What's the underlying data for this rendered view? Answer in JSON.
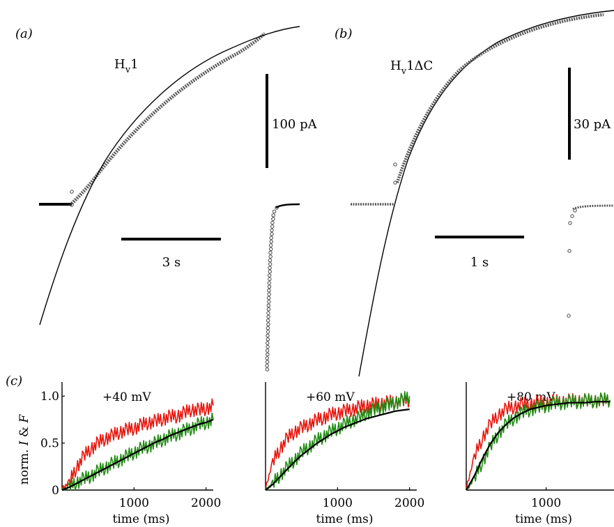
{
  "panels": {
    "a": {
      "letter": "(a)",
      "construct_main": "H",
      "construct_sub": "v",
      "construct_suffix": "1",
      "scalebar_current": "100 pA",
      "scalebar_time": "3 s"
    },
    "b": {
      "letter": "(b)",
      "construct_main": "H",
      "construct_sub": "v",
      "construct_suffix": "1ΔC",
      "scalebar_current": "30 pA",
      "scalebar_time": "1 s"
    },
    "c": {
      "letter": "(c)"
    }
  },
  "colors": {
    "current": "#e8140c",
    "fluorescence": "#1f8a12",
    "fit": "#000000",
    "trace": "#000000"
  },
  "chart_data": [
    {
      "type": "line",
      "panel": "c",
      "title": "+40 mV",
      "xlabel": "time (ms)",
      "ylabel_text": "norm. I & F",
      "xlim": [
        0,
        2100
      ],
      "ylim": [
        0,
        1.15
      ],
      "xticks": [
        1000,
        2000
      ],
      "yticks": [
        0,
        0.5,
        1.0
      ],
      "ytick_labels": [
        "0",
        "0.5",
        "1.0"
      ],
      "series": [
        {
          "color": "red",
          "x": [
            0,
            100,
            200,
            300,
            400,
            500,
            600,
            700,
            800,
            900,
            1000,
            1100,
            1200,
            1300,
            1400,
            1500,
            1600,
            1700,
            1800,
            1900,
            2000,
            2100
          ],
          "y": [
            0.02,
            0.08,
            0.24,
            0.36,
            0.44,
            0.5,
            0.55,
            0.58,
            0.62,
            0.64,
            0.66,
            0.69,
            0.72,
            0.73,
            0.76,
            0.78,
            0.79,
            0.82,
            0.86,
            0.85,
            0.87,
            0.9
          ]
        },
        {
          "color": "green",
          "x": [
            0,
            100,
            200,
            300,
            400,
            500,
            600,
            700,
            800,
            900,
            1000,
            1100,
            1200,
            1300,
            1400,
            1500,
            1600,
            1700,
            1800,
            1900,
            2000,
            2100
          ],
          "y": [
            0.0,
            0.04,
            0.08,
            0.12,
            0.15,
            0.2,
            0.24,
            0.28,
            0.32,
            0.36,
            0.4,
            0.44,
            0.47,
            0.5,
            0.54,
            0.57,
            0.6,
            0.63,
            0.66,
            0.7,
            0.72,
            0.75
          ]
        },
        {
          "color": "fit",
          "x": [
            0,
            100,
            200,
            300,
            400,
            500,
            600,
            700,
            800,
            900,
            1000,
            1100,
            1200,
            1300,
            1400,
            1500,
            1600,
            1700,
            1800,
            1900,
            2000,
            2100
          ],
          "y": [
            0.0,
            0.03,
            0.07,
            0.11,
            0.15,
            0.19,
            0.23,
            0.27,
            0.31,
            0.35,
            0.39,
            0.43,
            0.47,
            0.51,
            0.54,
            0.58,
            0.61,
            0.64,
            0.67,
            0.7,
            0.72,
            0.75
          ]
        }
      ]
    },
    {
      "type": "line",
      "panel": "c",
      "title": "+60 mV",
      "xlabel": "time (ms)",
      "xlim": [
        0,
        2100
      ],
      "ylim": [
        0,
        1.15
      ],
      "xticks": [
        1000,
        2000
      ],
      "series": [
        {
          "color": "red",
          "x": [
            0,
            100,
            200,
            300,
            400,
            500,
            600,
            700,
            800,
            900,
            1000,
            1100,
            1200,
            1300,
            1400,
            1500,
            1600,
            1700,
            1800,
            1900,
            2000
          ],
          "y": [
            0.02,
            0.3,
            0.44,
            0.55,
            0.62,
            0.66,
            0.7,
            0.74,
            0.77,
            0.8,
            0.82,
            0.84,
            0.86,
            0.88,
            0.9,
            0.91,
            0.92,
            0.93,
            0.94,
            0.95,
            0.96
          ]
        },
        {
          "color": "green",
          "x": [
            0,
            100,
            200,
            300,
            400,
            500,
            600,
            700,
            800,
            900,
            1000,
            1100,
            1200,
            1300,
            1400,
            1500,
            1600,
            1700,
            1800,
            1900,
            2000
          ],
          "y": [
            0.0,
            0.07,
            0.16,
            0.24,
            0.32,
            0.4,
            0.46,
            0.52,
            0.57,
            0.62,
            0.66,
            0.7,
            0.74,
            0.77,
            0.82,
            0.85,
            0.88,
            0.9,
            0.93,
            0.96,
            1.0
          ]
        },
        {
          "color": "fit",
          "x": [
            0,
            100,
            200,
            300,
            400,
            500,
            600,
            700,
            800,
            900,
            1000,
            1100,
            1200,
            1300,
            1400,
            1500,
            1600,
            1700,
            1800,
            1900,
            2000
          ],
          "y": [
            0.0,
            0.06,
            0.14,
            0.22,
            0.3,
            0.37,
            0.43,
            0.49,
            0.54,
            0.59,
            0.63,
            0.67,
            0.7,
            0.73,
            0.76,
            0.78,
            0.8,
            0.82,
            0.84,
            0.85,
            0.86
          ]
        }
      ]
    },
    {
      "type": "line",
      "panel": "c",
      "title": "+80 mV",
      "xlabel": "time (ms)",
      "xlim": [
        0,
        1850
      ],
      "ylim": [
        0,
        1.15
      ],
      "xticks": [
        1000
      ],
      "series": [
        {
          "color": "red",
          "x": [
            0,
            100,
            200,
            300,
            400,
            500,
            600,
            700,
            800,
            900,
            1000,
            1100,
            1200,
            1300,
            1400,
            1500,
            1600,
            1700,
            1800
          ],
          "y": [
            0.02,
            0.35,
            0.55,
            0.7,
            0.8,
            0.86,
            0.89,
            0.91,
            0.92,
            0.93,
            0.93,
            0.94,
            0.94,
            0.95,
            0.95,
            0.95,
            0.95,
            0.95,
            0.96
          ]
        },
        {
          "color": "green",
          "x": [
            0,
            100,
            200,
            300,
            400,
            500,
            600,
            700,
            800,
            900,
            1000,
            1100,
            1200,
            1300,
            1400,
            1500,
            1600,
            1700,
            1800
          ],
          "y": [
            0.0,
            0.12,
            0.3,
            0.46,
            0.6,
            0.7,
            0.77,
            0.82,
            0.86,
            0.88,
            0.9,
            0.92,
            0.93,
            0.94,
            0.94,
            0.95,
            0.95,
            0.96,
            0.96
          ]
        },
        {
          "color": "fit",
          "x": [
            0,
            100,
            200,
            300,
            400,
            500,
            600,
            700,
            800,
            900,
            1000,
            1100,
            1200,
            1300,
            1400,
            1500,
            1600,
            1700,
            1800
          ],
          "y": [
            0.0,
            0.15,
            0.33,
            0.49,
            0.61,
            0.7,
            0.77,
            0.82,
            0.86,
            0.88,
            0.9,
            0.91,
            0.92,
            0.93,
            0.93,
            0.93,
            0.94,
            0.94,
            0.94
          ]
        }
      ]
    }
  ]
}
